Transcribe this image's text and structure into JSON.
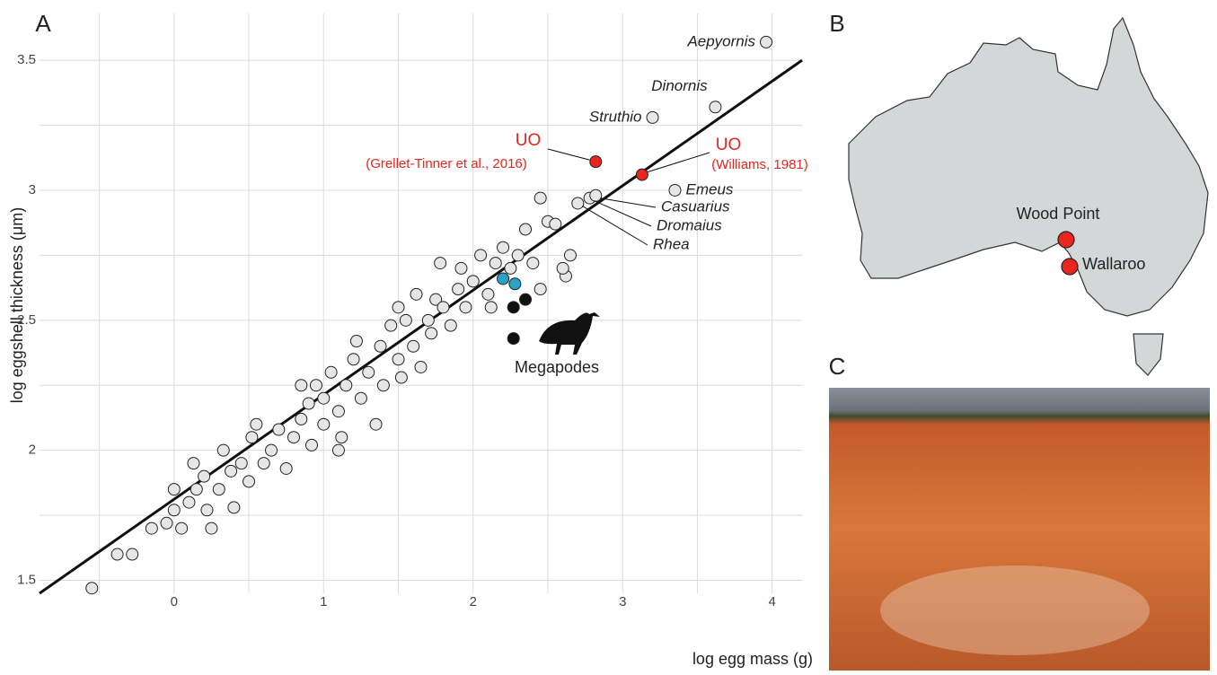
{
  "chart_data": {
    "type": "scatter",
    "xlabel": "log egg mass (g)",
    "ylabel": "log eggshell thickness (μm)",
    "xlim": [
      -0.9,
      4.2
    ],
    "ylim": [
      1.45,
      3.68
    ],
    "xticks": [
      0,
      1,
      2,
      3,
      4
    ],
    "yticks": [
      1.5,
      2.0,
      2.5,
      3.0,
      3.5
    ],
    "xgrid": [
      -0.5,
      0,
      0.5,
      1,
      1.5,
      2,
      2.5,
      3,
      3.5,
      4
    ],
    "ygrid": [
      1.5,
      1.75,
      2.0,
      2.25,
      2.5,
      2.75,
      3.0,
      3.25,
      3.5
    ],
    "series": [
      {
        "color": "#e6e6e6",
        "x": [
          -0.55,
          -0.38,
          -0.28,
          -0.15,
          -0.05,
          0.0,
          0.0,
          0.05,
          0.1,
          0.13,
          0.15,
          0.2,
          0.22,
          0.25,
          0.3,
          0.33,
          0.38,
          0.4,
          0.45,
          0.5,
          0.52,
          0.55,
          0.6,
          0.65,
          0.7,
          0.75,
          0.8,
          0.85,
          0.9,
          0.92,
          0.95,
          1.0,
          1.0,
          1.05,
          1.1,
          1.12,
          1.15,
          1.2,
          1.22,
          1.25,
          1.3,
          1.35,
          1.38,
          1.4,
          1.45,
          1.5,
          1.52,
          1.55,
          1.6,
          1.62,
          1.65,
          1.7,
          1.72,
          1.75,
          1.78,
          1.8,
          1.85,
          1.9,
          1.92,
          1.95,
          2.0,
          2.05,
          2.1,
          2.12,
          2.15,
          2.2,
          2.25,
          2.3,
          2.35,
          2.4,
          2.45,
          2.5,
          2.55,
          2.62,
          2.65,
          2.45,
          2.6,
          1.5,
          0.85,
          1.1,
          2.7,
          2.78,
          2.82,
          3.2,
          3.35,
          3.62,
          3.96
        ],
        "values": [
          1.47,
          1.6,
          1.6,
          1.7,
          1.72,
          1.77,
          1.85,
          1.7,
          1.8,
          1.95,
          1.85,
          1.9,
          1.77,
          1.7,
          1.85,
          2.0,
          1.92,
          1.78,
          1.95,
          1.88,
          2.05,
          2.1,
          1.95,
          2.0,
          2.08,
          1.93,
          2.05,
          2.12,
          2.18,
          2.02,
          2.25,
          2.1,
          2.2,
          2.3,
          2.15,
          2.05,
          2.25,
          2.35,
          2.42,
          2.2,
          2.3,
          2.1,
          2.4,
          2.25,
          2.48,
          2.35,
          2.28,
          2.5,
          2.4,
          2.6,
          2.32,
          2.5,
          2.45,
          2.58,
          2.72,
          2.55,
          2.48,
          2.62,
          2.7,
          2.55,
          2.65,
          2.75,
          2.6,
          2.55,
          2.72,
          2.78,
          2.7,
          2.75,
          2.85,
          2.72,
          2.97,
          2.88,
          2.87,
          2.67,
          2.75,
          2.62,
          2.7,
          2.55,
          2.25,
          2.0,
          2.95,
          2.97,
          2.98,
          3.28,
          3.0,
          3.32,
          3.57
        ]
      },
      {
        "color": "#29a3c8",
        "x": [
          2.2,
          2.28
        ],
        "values": [
          2.66,
          2.64
        ]
      },
      {
        "name": "Megapodes",
        "color": "#111111",
        "x": [
          2.27,
          2.35,
          2.27
        ],
        "values": [
          2.55,
          2.58,
          2.43
        ]
      },
      {
        "color": "#e8251f",
        "x": [
          2.82,
          3.13
        ],
        "values": [
          3.11,
          3.06
        ]
      }
    ],
    "point_labels": [
      "Rhea",
      "Dromaius",
      "Casuarius",
      "Struthio",
      "Emeus",
      "Dinornis",
      "Aepyornis"
    ],
    "red_labels": [
      {
        "label": "UO",
        "note": "(Grellet-Tinner et al., 2016)"
      },
      {
        "label": "UO",
        "note": "(Williams, 1981)"
      }
    ],
    "fit": {
      "x": [
        -0.9,
        4.2
      ],
      "values": [
        1.45,
        3.5
      ]
    }
  },
  "panels": [
    "A",
    "B",
    "C"
  ],
  "map": {
    "sites": [
      "Wood Point",
      "Wallaroo"
    ]
  }
}
